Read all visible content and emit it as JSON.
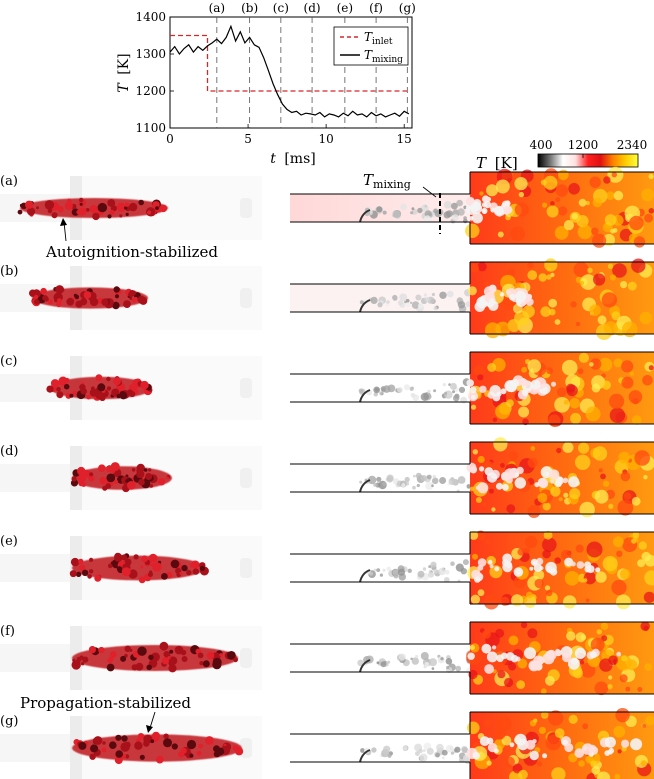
{
  "chart_data": {
    "type": "line",
    "xlabel_var": "t",
    "xlabel_unit": "[ms]",
    "ylabel_var": "T",
    "ylabel_unit": "[K]",
    "xticks": [
      "0",
      "5",
      "10",
      "15"
    ],
    "yticks": [
      "1100",
      "1200",
      "1300",
      "1400"
    ],
    "xlim": [
      0,
      15.5
    ],
    "ylim": [
      1100,
      1400
    ],
    "grid": false,
    "legend_placement": "top-right",
    "markers": [
      {
        "label": "(a)",
        "t": 3.0
      },
      {
        "label": "(b)",
        "t": 5.1
      },
      {
        "label": "(c)",
        "t": 7.1
      },
      {
        "label": "(d)",
        "t": 9.1
      },
      {
        "label": "(e)",
        "t": 11.2
      },
      {
        "label": "(f)",
        "t": 13.2
      },
      {
        "label": "(g)",
        "t": 15.2
      }
    ],
    "series": [
      {
        "name": "T",
        "name_sub": "inlet",
        "color": "#d62728",
        "style": "dashed",
        "x": [
          0,
          2.4,
          2.4,
          15.3
        ],
        "y": [
          1350,
          1350,
          1200,
          1200
        ]
      },
      {
        "name": "T",
        "name_sub": "mixing",
        "color": "#000000",
        "style": "solid",
        "x": [
          0,
          0.3,
          0.6,
          0.9,
          1.2,
          1.5,
          1.8,
          2.1,
          2.4,
          2.7,
          3.0,
          3.3,
          3.6,
          3.9,
          4.2,
          4.5,
          4.8,
          5.1,
          5.4,
          5.7,
          6.0,
          6.3,
          6.6,
          6.9,
          7.2,
          7.5,
          7.8,
          8.1,
          8.4,
          8.7,
          9.0,
          9.3,
          9.6,
          9.9,
          10.2,
          10.5,
          10.8,
          11.1,
          11.4,
          11.7,
          12.0,
          12.3,
          12.6,
          12.9,
          13.2,
          13.5,
          13.8,
          14.1,
          14.4,
          14.7,
          15.0,
          15.3
        ],
        "y": [
          1305,
          1320,
          1300,
          1315,
          1325,
          1305,
          1320,
          1310,
          1322,
          1330,
          1340,
          1328,
          1345,
          1375,
          1335,
          1360,
          1330,
          1345,
          1325,
          1318,
          1290,
          1255,
          1220,
          1190,
          1165,
          1150,
          1142,
          1145,
          1135,
          1140,
          1138,
          1135,
          1142,
          1130,
          1138,
          1135,
          1130,
          1140,
          1133,
          1145,
          1135,
          1138,
          1130,
          1142,
          1133,
          1138,
          1130,
          1135,
          1140,
          1132,
          1145,
          1138
        ]
      }
    ]
  },
  "colorbar": {
    "var": "T",
    "unit": "[K]",
    "ticks": [
      "400",
      "1200",
      "2340"
    ],
    "stops": [
      "#000000",
      "#777777",
      "#ffffff",
      "#ffe0e0",
      "#ff2020",
      "#e01010",
      "#ff8000",
      "#ffcc00",
      "#ffff40"
    ]
  },
  "rows": [
    {
      "label": "(a)",
      "phase": 0.0
    },
    {
      "label": "(b)",
      "phase": 0.15
    },
    {
      "label": "(c)",
      "phase": 0.3
    },
    {
      "label": "(d)",
      "phase": 0.45
    },
    {
      "label": "(e)",
      "phase": 0.6
    },
    {
      "label": "(f)",
      "phase": 0.75
    },
    {
      "label": "(g)",
      "phase": 0.9
    }
  ],
  "annotations": {
    "autoignition": "Autoignition-stabilized",
    "propagation": "Propagation-stabilized",
    "tmixing_var": "T",
    "tmixing_sub": "mixing"
  }
}
